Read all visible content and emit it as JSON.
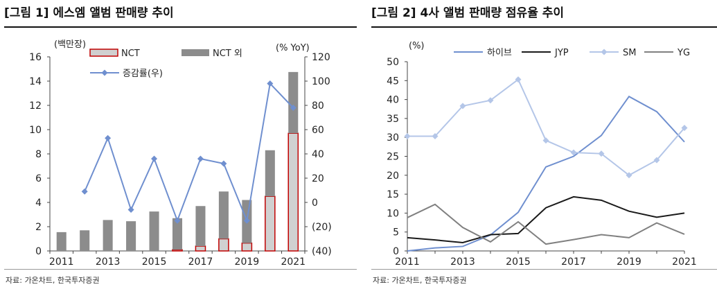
{
  "left": {
    "title": "[그림 1] 에스엠 앨범 판매량 추이",
    "source": "자료: 가온차트, 한국투자증권",
    "y_unit_left": "(백만장)",
    "y_unit_right": "(% YoY)",
    "legend": {
      "nct": "NCT",
      "nct_other": "NCT 외",
      "growth": "증감률(우)"
    }
  },
  "right": {
    "title": "[그림 2] 4사 앨범 판매량 점유율 추이",
    "source": "자료: 가온차트, 한국투자증권",
    "y_unit": "(%)"
  },
  "chart_data": [
    {
      "type": "bar",
      "title": "[그림 1] 에스엠 앨범 판매량 추이",
      "stacked": true,
      "categories": [
        "2011",
        "2012",
        "2013",
        "2014",
        "2015",
        "2016",
        "2017",
        "2018",
        "2019",
        "2020",
        "2021"
      ],
      "x_tick_labels": [
        "2011",
        "2013",
        "2015",
        "2017",
        "2019",
        "2021"
      ],
      "ylabel": "(백만장)",
      "ylim": [
        0,
        16
      ],
      "yticks": [
        0,
        2,
        4,
        6,
        8,
        10,
        12,
        14,
        16
      ],
      "y2label": "(% YoY)",
      "y2lim": [
        -40,
        120
      ],
      "y2ticks": [
        -40,
        -20,
        0,
        20,
        40,
        60,
        80,
        100,
        120
      ],
      "y2tick_labels": [
        "(40)",
        "(20)",
        "0",
        "20",
        "40",
        "60",
        "80",
        "100",
        "120"
      ],
      "series": [
        {
          "name": "NCT",
          "kind": "bar",
          "color": "#d0d0d0",
          "edge": "#c00000",
          "values": [
            0,
            0,
            0,
            0,
            0,
            0.1,
            0.4,
            1.0,
            0.65,
            4.5,
            9.7
          ]
        },
        {
          "name": "NCT 외",
          "kind": "bar",
          "color": "#8c8c8c",
          "values": [
            1.55,
            1.7,
            2.55,
            2.45,
            3.25,
            2.6,
            3.3,
            3.9,
            3.55,
            3.8,
            5.05
          ]
        },
        {
          "name": "증감률(우)",
          "kind": "line",
          "axis": "right",
          "color": "#6f8fcf",
          "values": [
            null,
            9,
            53,
            -6,
            36,
            -15,
            36,
            32,
            -15,
            98,
            78
          ]
        }
      ],
      "legend_position": "top"
    },
    {
      "type": "line",
      "title": "[그림 2] 4사 앨범 판매량 점유율 추이",
      "x": [
        2011,
        2012,
        2013,
        2014,
        2015,
        2016,
        2017,
        2018,
        2019,
        2020,
        2021
      ],
      "x_tick_labels": [
        "2011",
        "2013",
        "2015",
        "2017",
        "2019",
        "2021"
      ],
      "ylabel": "(%)",
      "ylim": [
        0,
        50
      ],
      "yticks": [
        0,
        5,
        10,
        15,
        20,
        25,
        30,
        35,
        40,
        45,
        50
      ],
      "series": [
        {
          "name": "하이브",
          "color": "#6f8fcf",
          "marker": "none",
          "values": [
            0,
            0.8,
            1.2,
            4.2,
            10.2,
            22.2,
            25,
            30.5,
            40.8,
            36.8,
            28.8
          ]
        },
        {
          "name": "JYP",
          "color": "#1a1a1a",
          "marker": "none",
          "values": [
            3.5,
            2.9,
            2.2,
            4.3,
            4.6,
            11.4,
            14.3,
            13.4,
            10.5,
            8.9,
            10.0
          ]
        },
        {
          "name": "SM",
          "color": "#b4c6e8",
          "marker": "diamond",
          "values": [
            30.3,
            30.3,
            38.3,
            39.8,
            45.3,
            29.2,
            26.0,
            25.7,
            20.0,
            24.0,
            32.5
          ]
        },
        {
          "name": "YG",
          "color": "#808080",
          "marker": "none",
          "values": [
            8.8,
            12.3,
            6.2,
            2.4,
            7.7,
            1.8,
            3.0,
            4.3,
            3.5,
            7.4,
            4.4
          ]
        }
      ],
      "legend_position": "top"
    }
  ]
}
